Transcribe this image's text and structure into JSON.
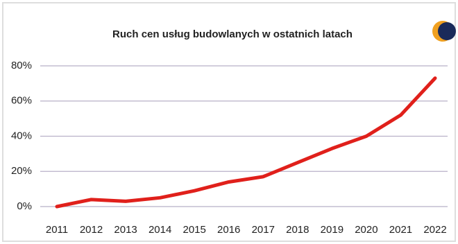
{
  "chart_data": {
    "type": "line",
    "title": "Ruch cen usług budowlanych w ostatnich latach",
    "categories": [
      "2011",
      "2012",
      "2013",
      "2014",
      "2015",
      "2016",
      "2017",
      "2018",
      "2019",
      "2020",
      "2021",
      "2022"
    ],
    "series": [
      {
        "name": "Ruch cen usług budowlanych",
        "color": "#e0201b",
        "values": [
          0,
          4,
          3,
          5,
          9,
          14,
          17,
          25,
          33,
          40,
          52,
          73
        ]
      }
    ],
    "ylim": [
      0,
      80
    ],
    "yticks": [
      {
        "value": 0,
        "label": "0%"
      },
      {
        "value": 20,
        "label": "20%"
      },
      {
        "value": 40,
        "label": "40%"
      },
      {
        "value": 60,
        "label": "60%"
      },
      {
        "value": 80,
        "label": "80%"
      }
    ],
    "grid": true
  }
}
